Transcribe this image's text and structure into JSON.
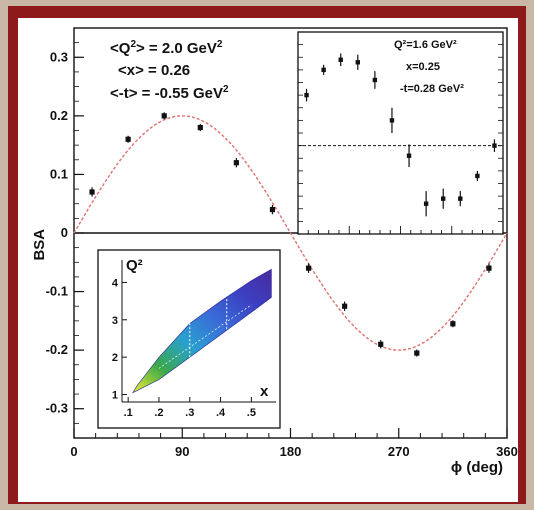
{
  "chart_data": [
    {
      "type": "scatter",
      "role": "main",
      "xlabel": "ϕ (deg)",
      "ylabel": "BSA",
      "xlim": [
        0,
        360
      ],
      "ylim": [
        -0.35,
        0.35
      ],
      "xticks": [
        0,
        90,
        180,
        270,
        360
      ],
      "yticks": [
        -0.3,
        -0.2,
        -0.1,
        0,
        0.1,
        0.2,
        0.3
      ],
      "annotations": [
        {
          "lines": [
            "<Q",
            "2",
            "> = 2.0 GeV",
            "2"
          ]
        },
        {
          "lines": [
            "<x> = 0.26"
          ]
        },
        {
          "lines": [
            "<-t> = -0.55 GeV",
            "2"
          ]
        }
      ],
      "x": [
        15,
        45,
        75,
        105,
        135,
        165,
        195,
        225,
        255,
        285,
        315,
        345
      ],
      "y": [
        0.07,
        0.16,
        0.2,
        0.18,
        0.12,
        0.04,
        -0.06,
        -0.125,
        -0.19,
        -0.205,
        -0.155,
        -0.06
      ],
      "yerr": [
        0.008,
        0.006,
        0.006,
        0.006,
        0.008,
        0.008,
        0.008,
        0.008,
        0.007,
        0.006,
        0.006,
        0.008
      ],
      "fit": {
        "amplitude": 0.2,
        "color": "#e07070"
      }
    },
    {
      "type": "scatter",
      "role": "inset-top-right",
      "annotations": [
        "Q²=1.6 GeV²",
        "x=0.25",
        "-t=0.28 GeV²"
      ],
      "x": [
        15,
        45,
        75,
        105,
        135,
        165,
        195,
        225,
        255,
        285,
        315,
        345
      ],
      "y": [
        0.2,
        0.3,
        0.34,
        0.33,
        0.26,
        0.1,
        -0.04,
        -0.23,
        -0.21,
        -0.21,
        -0.12,
        0.0
      ],
      "yerr": [
        0.025,
        0.02,
        0.025,
        0.03,
        0.035,
        0.05,
        0.045,
        0.05,
        0.04,
        0.03,
        0.02,
        0.025
      ],
      "xlim": [
        0,
        360
      ],
      "ylim": [
        -0.35,
        0.45
      ],
      "zero_line": "dashed"
    },
    {
      "type": "heatmap",
      "role": "inset-bottom-left",
      "xlabel": "x",
      "ylabel": "Q²",
      "xlim": [
        0.08,
        0.58
      ],
      "ylim": [
        0.8,
        4.6
      ],
      "xticks": [
        ".1",
        ".2",
        ".3",
        ".4",
        ".5"
      ],
      "yticks": [
        1,
        2,
        3,
        4
      ],
      "colors": [
        "#f2ee30",
        "#3aa84a",
        "#2a9fd0",
        "#3a6ad8",
        "#3b3fc0",
        "#4a2aa0"
      ]
    }
  ]
}
